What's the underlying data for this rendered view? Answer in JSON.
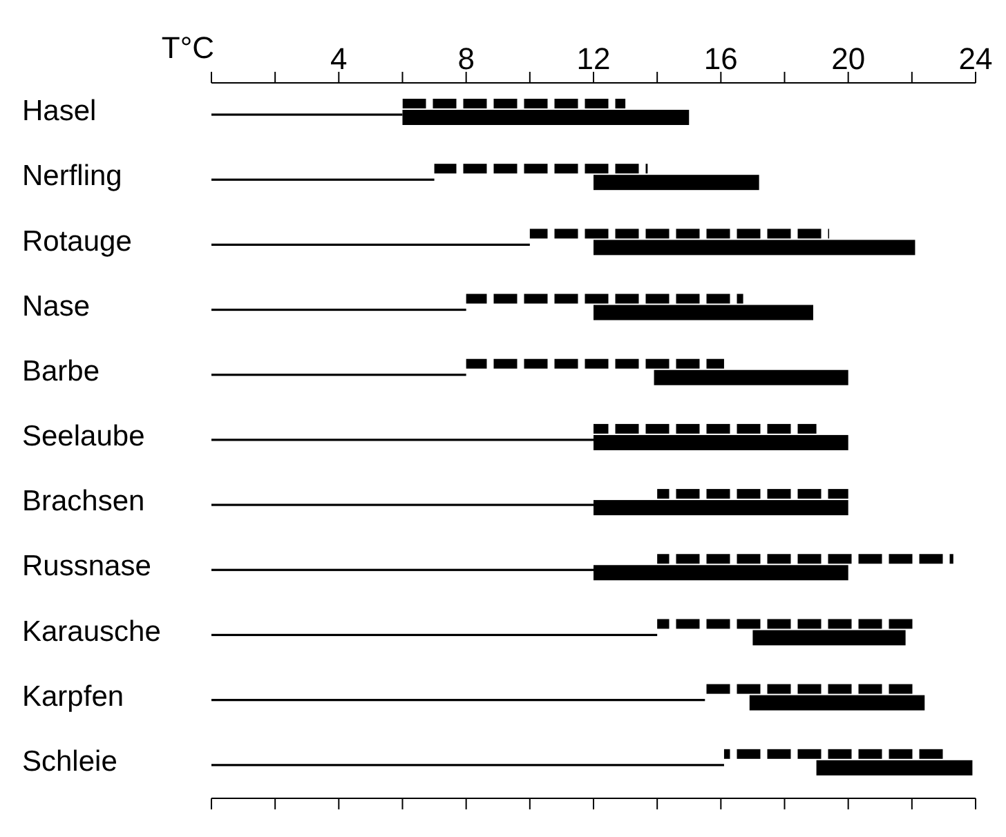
{
  "chart_data": {
    "type": "bar",
    "orientation": "horizontal",
    "xlabel": "T°C",
    "categories": [
      "Hasel",
      "Nerfling",
      "Rotauge",
      "Nase",
      "Barbe",
      "Seelaube",
      "Brachsen",
      "Russnase",
      "Karausche",
      "Karpfen",
      "Schleie"
    ],
    "series": [
      {
        "color": "#000000",
        "line_style": "dashed",
        "base": [
          6,
          7,
          10,
          8,
          8,
          12,
          14,
          14,
          14,
          15.5,
          16.1
        ],
        "values": [
          7,
          6.7,
          9.4,
          8.7,
          8.1,
          7,
          6,
          9.3,
          8.2,
          6.6,
          7
        ]
      },
      {
        "color": "#000000",
        "line_style": "solid",
        "base": [
          0,
          0,
          0,
          0,
          0,
          0,
          0,
          0,
          0,
          0,
          0
        ],
        "values": [
          6,
          7,
          10,
          8,
          8,
          12,
          12,
          12,
          14,
          15.5,
          16.1
        ]
      },
      {
        "color": "#000000",
        "line_style": "solid",
        "base": [
          6,
          12,
          12,
          12,
          13.9,
          12,
          12,
          12,
          17,
          16.9,
          19
        ],
        "values": [
          9,
          5.2,
          10.1,
          6.9,
          6.1,
          8,
          8,
          8,
          4.8,
          5.5,
          4.9
        ]
      }
    ],
    "xlim": [
      0,
      24
    ],
    "xticks": [
      {
        "value": 0,
        "label": null
      },
      {
        "value": 2,
        "label": null
      },
      4,
      {
        "value": 6,
        "label": null
      },
      8,
      {
        "value": 10,
        "label": null
      },
      12,
      {
        "value": 14,
        "label": null
      },
      16,
      {
        "value": 18,
        "label": null
      },
      20,
      {
        "value": 22,
        "label": null
      },
      24
    ],
    "grid": false,
    "legend": false
  }
}
